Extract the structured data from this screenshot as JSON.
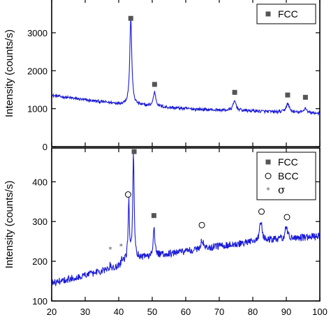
{
  "chart_data": [
    {
      "panel": "top",
      "type": "line",
      "ylabel": "Intensity (counts/s)",
      "xlim": [
        20,
        100
      ],
      "ylim": [
        0,
        3900
      ],
      "yticks": [
        0,
        1000,
        2000,
        3000
      ],
      "legend": {
        "position": "top-right",
        "entries": [
          {
            "symbol": "square",
            "label": "FCC"
          }
        ]
      },
      "series": [
        {
          "color": "#1a1ad6",
          "baseline": [
            [
              20,
              1350
            ],
            [
              30,
              1230
            ],
            [
              40,
              1130
            ],
            [
              45,
              1100
            ],
            [
              50,
              1060
            ],
            [
              60,
              1000
            ],
            [
              70,
              960
            ],
            [
              80,
              940
            ],
            [
              90,
              900
            ],
            [
              100,
              880
            ]
          ],
          "peaks": [
            {
              "x": 43.6,
              "height": 2300,
              "width": 0.35
            },
            {
              "x": 50.7,
              "height": 380,
              "width": 0.45
            },
            {
              "x": 74.6,
              "height": 250,
              "width": 0.55
            },
            {
              "x": 90.4,
              "height": 230,
              "width": 0.6
            },
            {
              "x": 95.7,
              "height": 130,
              "width": 0.5
            }
          ],
          "noise": 40
        }
      ],
      "markers": [
        {
          "symbol": "square",
          "x": 43.6,
          "y": 3380
        },
        {
          "symbol": "square",
          "x": 50.7,
          "y": 1640
        },
        {
          "symbol": "square",
          "x": 74.6,
          "y": 1430
        },
        {
          "symbol": "square",
          "x": 90.4,
          "y": 1360
        },
        {
          "symbol": "square",
          "x": 95.7,
          "y": 1300
        }
      ]
    },
    {
      "panel": "bottom",
      "type": "line",
      "xlabel": "",
      "ylabel": "Intensity (counts/s)",
      "xlim": [
        20,
        100
      ],
      "ylim": [
        100,
        485
      ],
      "xticks": [
        20,
        30,
        40,
        50,
        60,
        70,
        80,
        90,
        100
      ],
      "yticks": [
        100,
        200,
        300,
        400
      ],
      "legend": {
        "position": "top-right",
        "entries": [
          {
            "symbol": "square",
            "label": "FCC"
          },
          {
            "symbol": "circle",
            "label": "BCC"
          },
          {
            "symbol": "asterisk",
            "label": "σ"
          }
        ]
      },
      "series": [
        {
          "color": "#1a1ad6",
          "baseline": [
            [
              20,
              145
            ],
            [
              30,
              165
            ],
            [
              40,
              185
            ],
            [
              43,
              208
            ],
            [
              46,
              208
            ],
            [
              50,
              213
            ],
            [
              60,
              225
            ],
            [
              70,
              238
            ],
            [
              80,
              248
            ],
            [
              90,
              257
            ],
            [
              100,
              262
            ]
          ],
          "peaks": [
            {
              "x": 37.5,
              "height": 10,
              "width": 0.3
            },
            {
              "x": 41.0,
              "height": 12,
              "width": 0.3
            },
            {
              "x": 43.0,
              "height": 145,
              "width": 0.22
            },
            {
              "x": 44.4,
              "height": 262,
              "width": 0.25
            },
            {
              "x": 50.5,
              "height": 70,
              "width": 0.3
            },
            {
              "x": 64.9,
              "height": 24,
              "width": 0.4
            },
            {
              "x": 82.4,
              "height": 50,
              "width": 0.45
            },
            {
              "x": 90.0,
              "height": 30,
              "width": 0.4
            }
          ],
          "noise": 9
        }
      ],
      "markers": [
        {
          "symbol": "square",
          "x": 44.6,
          "y": 476
        },
        {
          "symbol": "circle",
          "x": 42.8,
          "y": 368
        },
        {
          "symbol": "square",
          "x": 50.5,
          "y": 315
        },
        {
          "symbol": "circle",
          "x": 64.8,
          "y": 291
        },
        {
          "symbol": "circle",
          "x": 82.6,
          "y": 325
        },
        {
          "symbol": "circle",
          "x": 90.2,
          "y": 311
        },
        {
          "symbol": "asterisk",
          "x": 37.5,
          "y": 230
        },
        {
          "symbol": "asterisk",
          "x": 40.7,
          "y": 238
        }
      ]
    }
  ]
}
